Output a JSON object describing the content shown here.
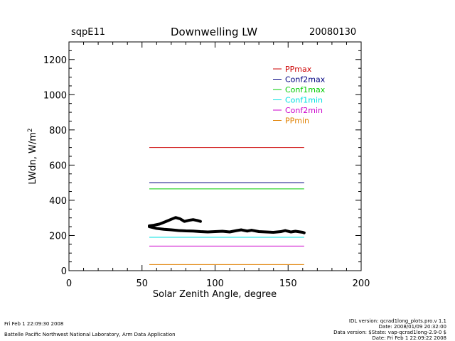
{
  "header": {
    "site": "sqpE11",
    "title": "Downwelling LW",
    "date": "20080130"
  },
  "footer": {
    "left_line1": "Fri Feb  1 22:09:30 2008",
    "left_line2": "Battelle Pacific Northwest National Laboratory, Arm Data Application",
    "right_line1": "IDL version: qcrad1long_plots.pro.v 1.1",
    "right_line2": "Date: 2008/01/09 20:32:00",
    "right_line3": "Data version: $State: vap-qcrad1long-2.9-0 $",
    "right_line4": "Date: Fri Feb  1 22:09:22 2008"
  },
  "chart_data": {
    "type": "line",
    "title": "Downwelling LW",
    "xlabel": "Solar Zenith Angle, degree",
    "ylabel": "LWdn, W/m",
    "ylabel_superscript": "2",
    "xlim": [
      0,
      200
    ],
    "ylim": [
      0,
      1300
    ],
    "xticks": [
      0,
      50,
      100,
      150,
      200
    ],
    "yticks": [
      0,
      200,
      400,
      600,
      800,
      1000,
      1200
    ],
    "legend_position": "top-right",
    "series": [
      {
        "name": "PPmax",
        "color": "#cc0000",
        "x": [
          55,
          161
        ],
        "y": [
          700,
          700
        ]
      },
      {
        "name": "Conf2max",
        "color": "#000080",
        "x": [
          55,
          161
        ],
        "y": [
          500,
          500
        ]
      },
      {
        "name": "Conf1max",
        "color": "#00cc00",
        "x": [
          55,
          161
        ],
        "y": [
          465,
          465
        ]
      },
      {
        "name": "Conf1min",
        "color": "#00e0e0",
        "x": [
          55,
          161
        ],
        "y": [
          190,
          190
        ]
      },
      {
        "name": "Conf2min",
        "color": "#cc00cc",
        "x": [
          55,
          161
        ],
        "y": [
          140,
          140
        ]
      },
      {
        "name": "PPmin",
        "color": "#e08000",
        "x": [
          55,
          161
        ],
        "y": [
          35,
          35
        ]
      }
    ],
    "measured": {
      "color": "#000000",
      "segments": [
        {
          "x": [
            55,
            58,
            62,
            66,
            70,
            73,
            76,
            79,
            82,
            85,
            88,
            90
          ],
          "y": [
            255,
            258,
            265,
            278,
            292,
            302,
            295,
            280,
            286,
            290,
            285,
            280
          ]
        },
        {
          "x": [
            55,
            60,
            65,
            70,
            75,
            80,
            85,
            90,
            95,
            100,
            105,
            110,
            115,
            118,
            122,
            125,
            130,
            135,
            140,
            145,
            148,
            152,
            155,
            160,
            161
          ],
          "y": [
            250,
            240,
            235,
            232,
            228,
            226,
            225,
            222,
            220,
            222,
            224,
            220,
            228,
            232,
            225,
            230,
            222,
            220,
            218,
            222,
            228,
            220,
            224,
            218,
            215
          ]
        }
      ]
    }
  }
}
